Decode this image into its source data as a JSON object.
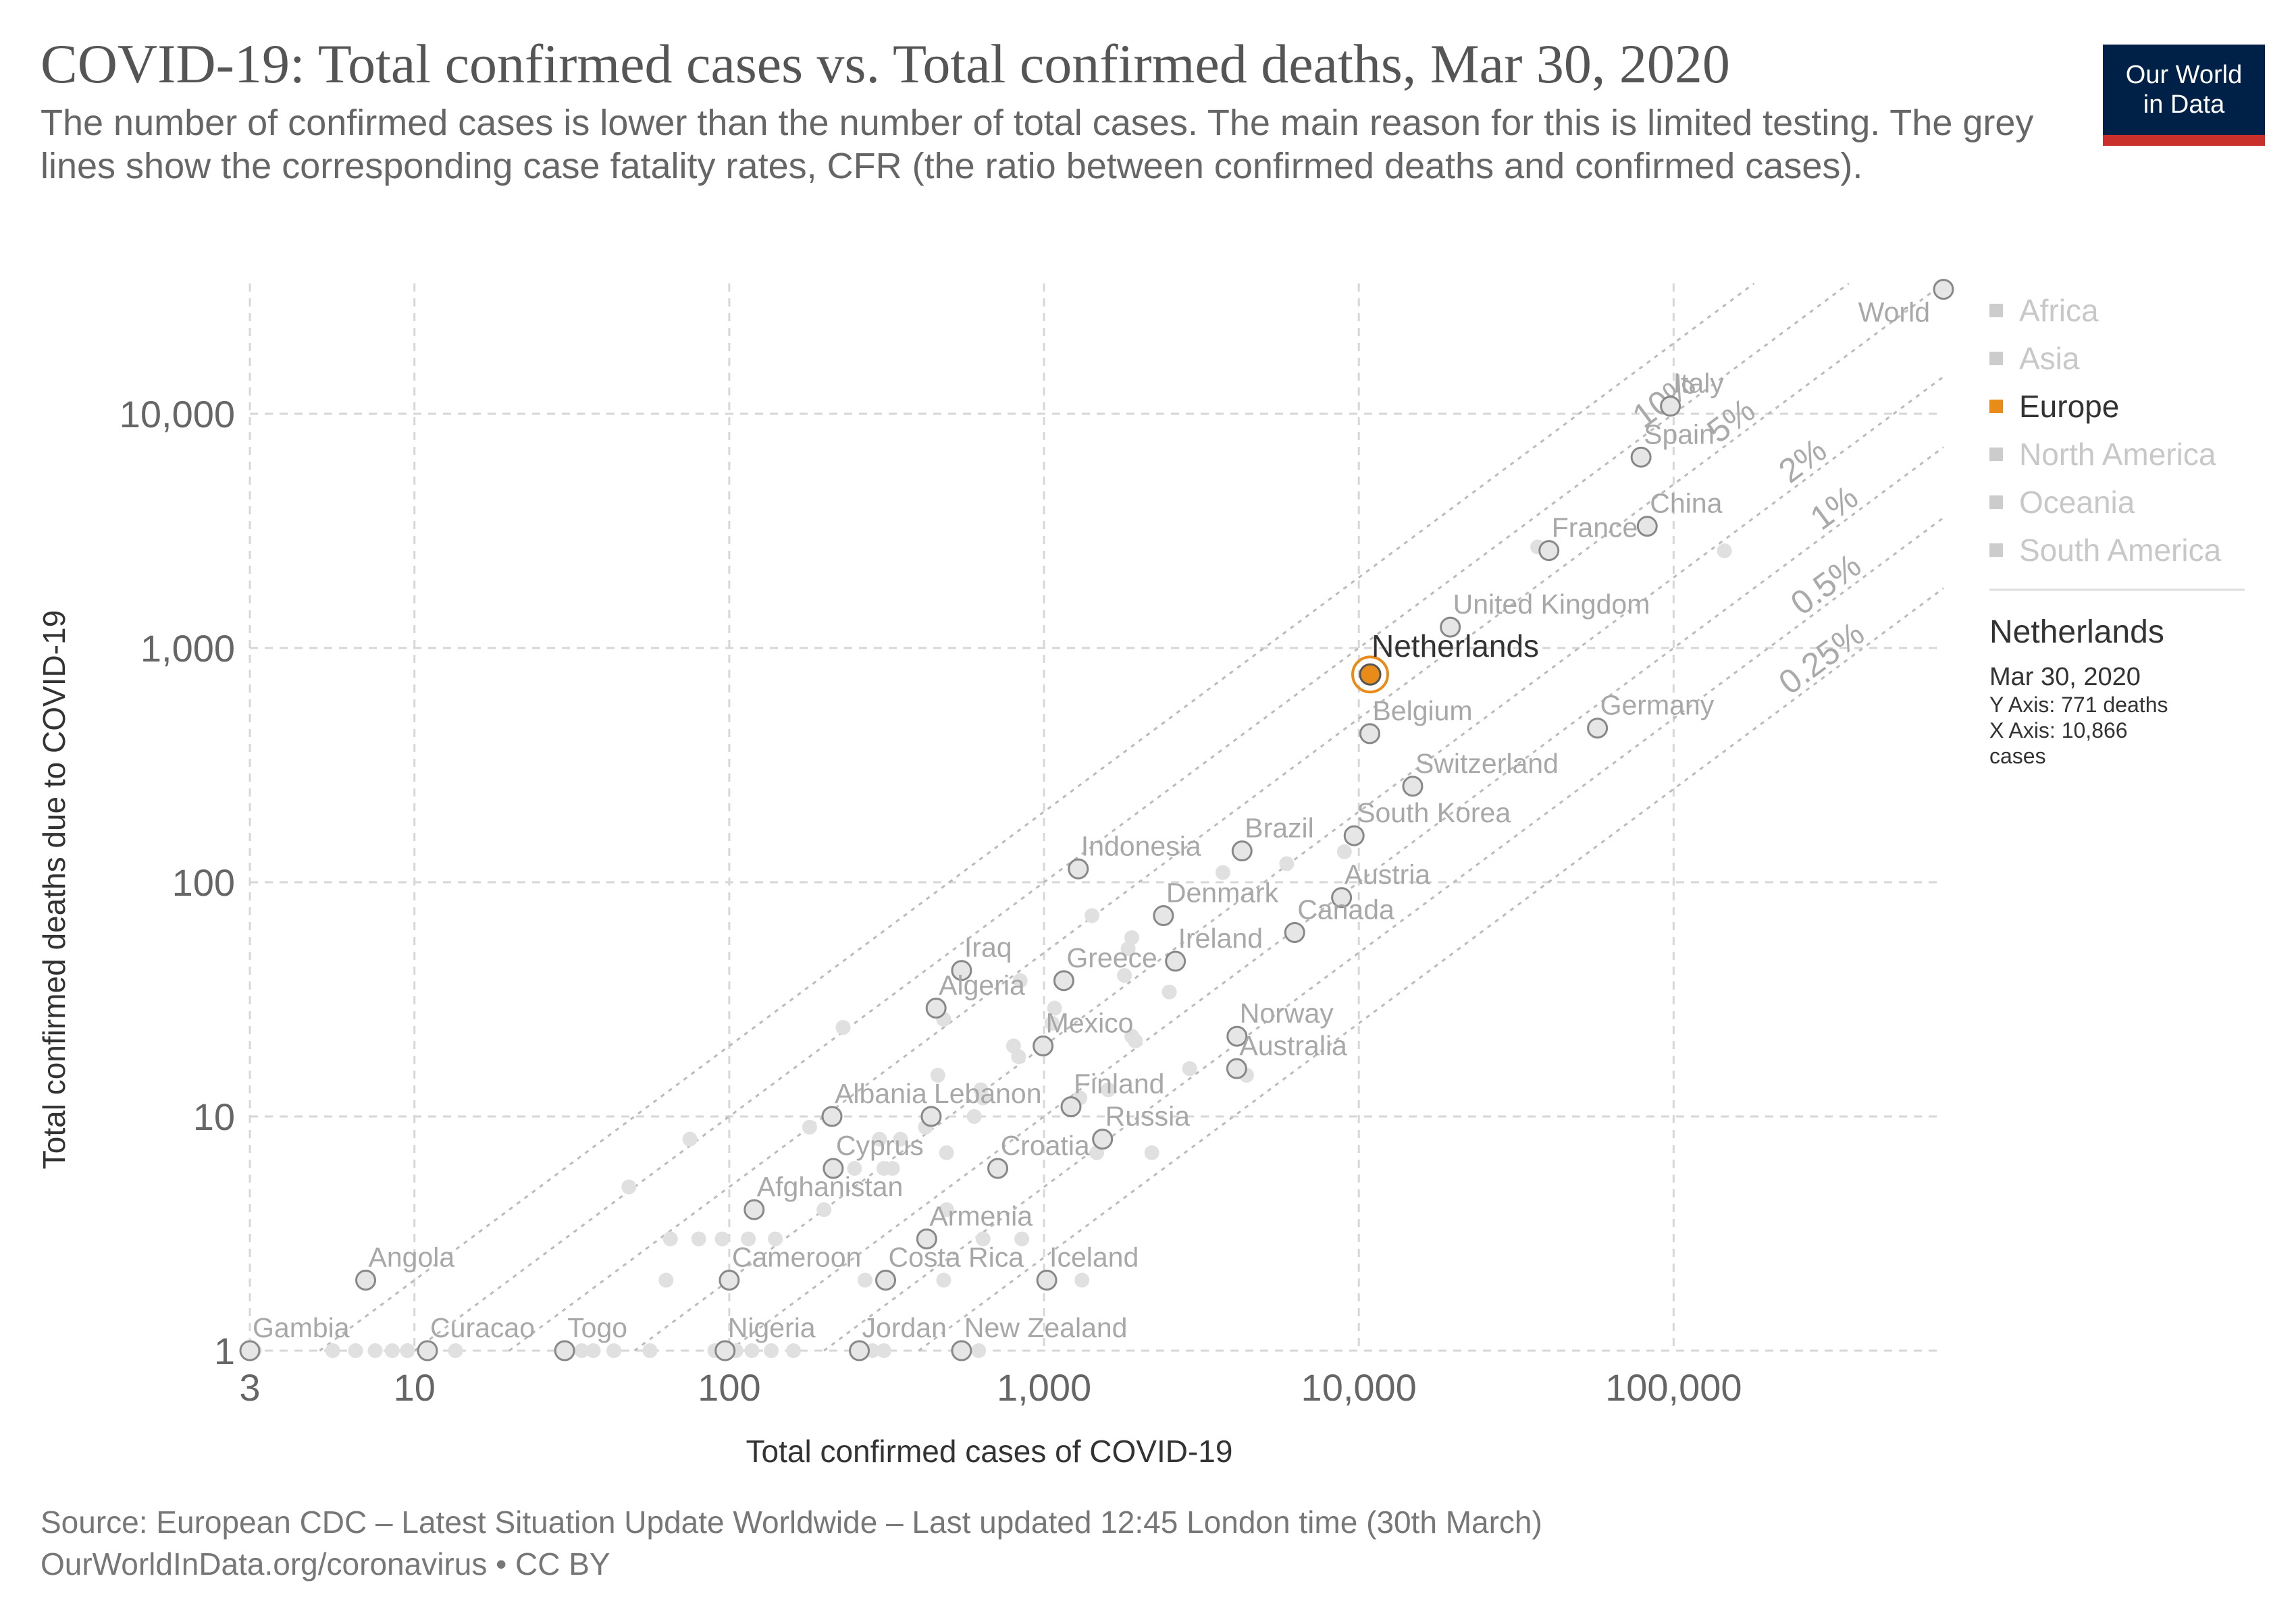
{
  "header": {
    "title": "COVID-19: Total confirmed cases vs. Total confirmed deaths, Mar 30, 2020",
    "subtitle": "The number of confirmed cases is lower than the number of total cases. The main reason for this is limited testing. The grey lines show the corresponding case fatality rates, CFR (the ratio between confirmed deaths and confirmed cases).",
    "logo_line1": "Our World",
    "logo_line2": "in Data"
  },
  "footer": {
    "source": "Source: European CDC – Latest Situation Update Worldwide – Last updated 12:45 London time (30th March)",
    "credit": "OurWorldInData.org/coronavirus • CC BY"
  },
  "legend": {
    "items": [
      {
        "label": "Africa",
        "active": false
      },
      {
        "label": "Asia",
        "active": false
      },
      {
        "label": "Europe",
        "active": true
      },
      {
        "label": "North America",
        "active": false
      },
      {
        "label": "Oceania",
        "active": false
      },
      {
        "label": "South America",
        "active": false
      }
    ]
  },
  "hover": {
    "name": "Netherlands",
    "date": "Mar 30, 2020",
    "y_text": "Y Axis: 771 deaths",
    "x_text": "X Axis: 10,866",
    "x_text2": "cases"
  },
  "colors": {
    "highlight": "#e88b18",
    "point": "#e0e0e0",
    "point_stroke": "#888888",
    "grid": "#d7d7d7",
    "label": "#a8a8a8"
  },
  "chart_data": {
    "type": "scatter",
    "xlabel": "Total confirmed cases of COVID-19",
    "ylabel": "Total confirmed deaths due to COVID-19",
    "x_scale": "log",
    "y_scale": "log",
    "xlim": [
      3,
      720000
    ],
    "ylim": [
      1,
      36000
    ],
    "x_ticks": [
      {
        "v": 3,
        "label": "3"
      },
      {
        "v": 10,
        "label": "10"
      },
      {
        "v": 100,
        "label": "100"
      },
      {
        "v": 1000,
        "label": "1,000"
      },
      {
        "v": 10000,
        "label": "10,000"
      },
      {
        "v": 100000,
        "label": "100,000"
      }
    ],
    "y_ticks": [
      {
        "v": 1,
        "label": "1"
      },
      {
        "v": 10,
        "label": "10"
      },
      {
        "v": 100,
        "label": "100"
      },
      {
        "v": 1000,
        "label": "1,000"
      },
      {
        "v": 10000,
        "label": "10,000"
      }
    ],
    "cfr_lines": [
      {
        "rate": 0.1,
        "label": "10%"
      },
      {
        "rate": 0.05,
        "label": "5%"
      },
      {
        "rate": 0.02,
        "label": "2%"
      },
      {
        "rate": 0.01,
        "label": "1%"
      },
      {
        "rate": 0.005,
        "label": "0.5%"
      },
      {
        "rate": 0.0025,
        "label": "0.25%"
      },
      {
        "rate": 0.2,
        "label": ""
      }
    ],
    "highlight": {
      "name": "Netherlands",
      "x": 10866,
      "y": 771
    },
    "labeled_points": [
      {
        "name": "World",
        "x": 720000,
        "y": 34000
      },
      {
        "name": "Italy",
        "x": 97689,
        "y": 10779
      },
      {
        "name": "Spain",
        "x": 78797,
        "y": 6528
      },
      {
        "name": "China",
        "x": 82447,
        "y": 3310
      },
      {
        "name": "France",
        "x": 40174,
        "y": 2606
      },
      {
        "name": "United Kingdom",
        "x": 19522,
        "y": 1228
      },
      {
        "name": "Germany",
        "x": 57298,
        "y": 455
      },
      {
        "name": "Belgium",
        "x": 10836,
        "y": 431
      },
      {
        "name": "Switzerland",
        "x": 14829,
        "y": 257
      },
      {
        "name": "South Korea",
        "x": 9661,
        "y": 158
      },
      {
        "name": "Brazil",
        "x": 4256,
        "y": 136
      },
      {
        "name": "Indonesia",
        "x": 1285,
        "y": 114
      },
      {
        "name": "Austria",
        "x": 8813,
        "y": 86
      },
      {
        "name": "Denmark",
        "x": 2395,
        "y": 72
      },
      {
        "name": "Canada",
        "x": 6255,
        "y": 61
      },
      {
        "name": "Ireland",
        "x": 2615,
        "y": 46
      },
      {
        "name": "Iraq",
        "x": 547,
        "y": 42
      },
      {
        "name": "Greece",
        "x": 1156,
        "y": 38
      },
      {
        "name": "Algeria",
        "x": 454,
        "y": 29
      },
      {
        "name": "Mexico",
        "x": 993,
        "y": 20
      },
      {
        "name": "Norway",
        "x": 4102,
        "y": 22
      },
      {
        "name": "Australia",
        "x": 4093,
        "y": 16
      },
      {
        "name": "Finland",
        "x": 1218,
        "y": 11
      },
      {
        "name": "Albania",
        "x": 212,
        "y": 10
      },
      {
        "name": "Lebanon",
        "x": 438,
        "y": 10
      },
      {
        "name": "Russia",
        "x": 1534,
        "y": 8
      },
      {
        "name": "Cyprus",
        "x": 214,
        "y": 6
      },
      {
        "name": "Croatia",
        "x": 713,
        "y": 6
      },
      {
        "name": "Afghanistan",
        "x": 120,
        "y": 4
      },
      {
        "name": "Armenia",
        "x": 424,
        "y": 3
      },
      {
        "name": "Angola",
        "x": 7,
        "y": 2
      },
      {
        "name": "Cameroon",
        "x": 100,
        "y": 2
      },
      {
        "name": "Costa Rica",
        "x": 314,
        "y": 2
      },
      {
        "name": "Iceland",
        "x": 1020,
        "y": 2
      },
      {
        "name": "Gambia",
        "x": 3,
        "y": 1
      },
      {
        "name": "Curacao",
        "x": 11,
        "y": 1
      },
      {
        "name": "Togo",
        "x": 30,
        "y": 1
      },
      {
        "name": "Nigeria",
        "x": 97,
        "y": 1
      },
      {
        "name": "Jordan",
        "x": 259,
        "y": 1
      },
      {
        "name": "New Zealand",
        "x": 547,
        "y": 1
      }
    ],
    "background_points": [
      [
        37000,
        2700
      ],
      [
        145000,
        2600
      ],
      [
        3700,
        110
      ],
      [
        5900,
        120
      ],
      [
        9000,
        135
      ],
      [
        1420,
        72
      ],
      [
        1900,
        58
      ],
      [
        1850,
        52
      ],
      [
        1800,
        40
      ],
      [
        2500,
        34
      ],
      [
        840,
        38
      ],
      [
        230,
        24
      ],
      [
        480,
        26
      ],
      [
        1080,
        29
      ],
      [
        1060,
        25
      ],
      [
        800,
        20
      ],
      [
        830,
        18
      ],
      [
        1900,
        22
      ],
      [
        1950,
        21
      ],
      [
        2900,
        16
      ],
      [
        4400,
        15
      ],
      [
        460,
        15
      ],
      [
        640,
        12
      ],
      [
        630,
        13
      ],
      [
        1600,
        13
      ],
      [
        1300,
        12
      ],
      [
        300,
        8
      ],
      [
        350,
        8
      ],
      [
        420,
        9
      ],
      [
        490,
        7
      ],
      [
        600,
        10
      ],
      [
        75,
        8
      ],
      [
        180,
        9
      ],
      [
        250,
        6
      ],
      [
        310,
        6
      ],
      [
        330,
        6
      ],
      [
        1470,
        7
      ],
      [
        2200,
        7
      ],
      [
        48,
        5
      ],
      [
        200,
        4
      ],
      [
        490,
        4
      ],
      [
        65,
        3
      ],
      [
        80,
        3
      ],
      [
        95,
        3
      ],
      [
        115,
        3
      ],
      [
        140,
        3
      ],
      [
        640,
        3
      ],
      [
        850,
        3
      ],
      [
        63,
        2
      ],
      [
        270,
        2
      ],
      [
        480,
        2
      ],
      [
        1320,
        2
      ],
      [
        5.5,
        1
      ],
      [
        6.5,
        1
      ],
      [
        7.5,
        1
      ],
      [
        8.5,
        1
      ],
      [
        9.5,
        1
      ],
      [
        13.5,
        1
      ],
      [
        34,
        1
      ],
      [
        37,
        1
      ],
      [
        43,
        1
      ],
      [
        56,
        1
      ],
      [
        90,
        1
      ],
      [
        105,
        1
      ],
      [
        118,
        1
      ],
      [
        136,
        1
      ],
      [
        160,
        1
      ],
      [
        285,
        1
      ],
      [
        310,
        1
      ],
      [
        620,
        1
      ],
      [
        3.1,
        1
      ]
    ]
  }
}
